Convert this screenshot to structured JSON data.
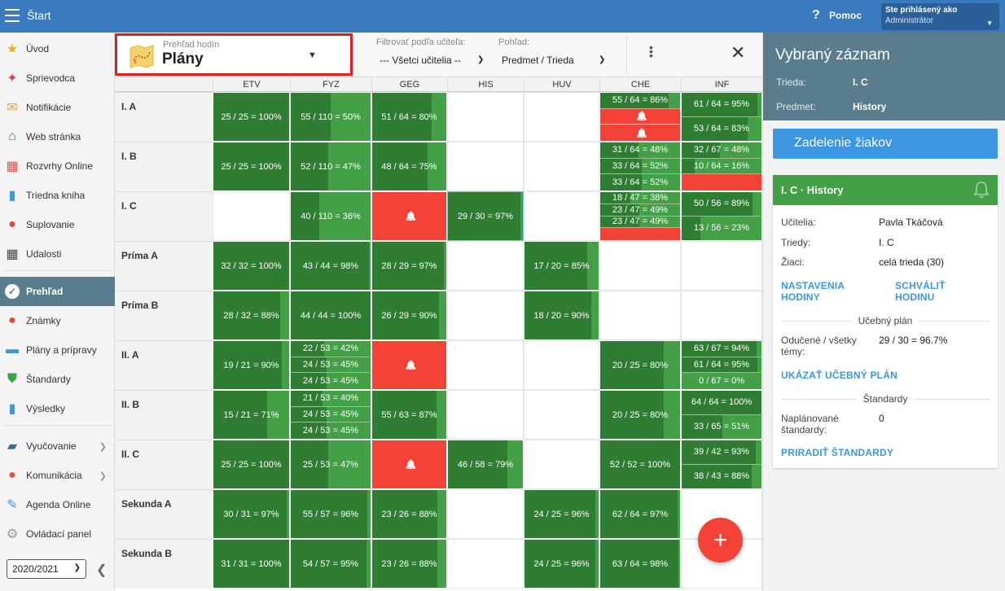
{
  "app": {
    "title": "Štart",
    "help": "Pomoc",
    "user_label": "Ste prihlásený ako",
    "user_name": "Administrátor"
  },
  "colors": {
    "topbar": "#3a7bbf",
    "green": "#2e7d32",
    "red": "#f44336",
    "panel": "#5a7d8e",
    "link": "#3c96e0"
  },
  "sidebar": {
    "items": [
      {
        "label": "Úvod",
        "icon": "star-icon"
      },
      {
        "label": "Sprievodca",
        "icon": "magic-wand-icon"
      },
      {
        "label": "Notifikácie",
        "icon": "envelope-icon"
      },
      {
        "label": "Web stránka",
        "icon": "house-icon"
      },
      {
        "label": "Rozvrhy Online",
        "icon": "timetable-icon"
      },
      {
        "label": "Triedna kniha",
        "icon": "book-icon"
      },
      {
        "label": "Suplovanie",
        "icon": "person-icon"
      },
      {
        "label": "Udalosti",
        "icon": "calendar-icon"
      },
      {
        "label": "Prehľad",
        "icon": "check-circle-icon"
      },
      {
        "label": "Známky",
        "icon": "grade-icon"
      },
      {
        "label": "Plány a prípravy",
        "icon": "briefcase-icon"
      },
      {
        "label": "Štandardy",
        "icon": "shield-check-icon"
      },
      {
        "label": "Výsledky",
        "icon": "bar-chart-icon"
      },
      {
        "label": "Vyučovanie",
        "icon": "open-book-icon"
      },
      {
        "label": "Komunikácia",
        "icon": "chat-icon"
      },
      {
        "label": "Agenda Online",
        "icon": "pen-icon"
      },
      {
        "label": "Ovládací panel",
        "icon": "gear-icon"
      }
    ],
    "year": "2020/2021"
  },
  "toolbar": {
    "view_sub": "Prehľad hodín",
    "view_title": "Plány",
    "filter_label": "Filtrovať podľa učiteľa:",
    "filter_value": "--- Všetci učitelia --",
    "view_label": "Pohľad:",
    "view_value": "Predmet / Trieda"
  },
  "grid": {
    "columns": [
      "ETV",
      "FYZ",
      "GEG",
      "HIS",
      "HUV",
      "CHE",
      "INF"
    ],
    "rows": [
      {
        "name": "I. A",
        "cells": [
          [
            {
              "t": "25 / 25 = 100%",
              "p": 1
            }
          ],
          [
            {
              "t": "55 / 110 = 50%",
              "p": 0.5
            }
          ],
          [
            {
              "t": "51 / 64 = 80%",
              "p": 0.8
            }
          ],
          [],
          [],
          [
            {
              "t": "55 / 64 = 86%",
              "p": 0.86
            },
            {
              "t": "",
              "red": true,
              "bell": true
            },
            {
              "t": "",
              "red": true,
              "bell": true
            }
          ],
          [
            {
              "t": "61 / 64 = 95%",
              "p": 0.95
            },
            {
              "t": "53 / 64 = 83%",
              "p": 0.83
            }
          ]
        ]
      },
      {
        "name": "I. B",
        "cells": [
          [
            {
              "t": "25 / 25 = 100%",
              "p": 1
            }
          ],
          [
            {
              "t": "52 / 110 = 47%",
              "p": 0.47
            }
          ],
          [
            {
              "t": "48 / 64 = 75%",
              "p": 0.75
            }
          ],
          [],
          [],
          [
            {
              "t": "31 / 64 = 48%",
              "p": 0.48
            },
            {
              "t": "33 / 64 = 52%",
              "p": 0.52
            },
            {
              "t": "33 / 64 = 52%",
              "p": 0.52
            }
          ],
          [
            {
              "t": "32 / 67 = 48%",
              "p": 0.48
            },
            {
              "t": "10 / 64 = 16%",
              "p": 0.16
            },
            {
              "t": "",
              "red": true
            }
          ]
        ]
      },
      {
        "name": "I. C",
        "cells": [
          [],
          [
            {
              "t": "40 / 110 = 36%",
              "p": 0.36
            }
          ],
          [
            {
              "t": "",
              "red": true,
              "bell": true
            }
          ],
          [
            {
              "t": "29 / 30 = 97%",
              "p": 0.97,
              "sel": true
            }
          ],
          [],
          [
            {
              "t": "18 / 47 = 38%",
              "p": 0.38
            },
            {
              "t": "23 / 47 = 49%",
              "p": 0.49
            },
            {
              "t": "23 / 47 = 49%",
              "p": 0.49
            },
            {
              "t": "",
              "red": true
            }
          ],
          [
            {
              "t": "50 / 56 = 89%",
              "p": 0.89
            },
            {
              "t": "13 / 56 = 23%",
              "p": 0.23
            }
          ]
        ]
      },
      {
        "name": "Príma A",
        "cells": [
          [
            {
              "t": "32 / 32 = 100%",
              "p": 1
            }
          ],
          [
            {
              "t": "43 / 44 = 98%",
              "p": 0.98
            }
          ],
          [
            {
              "t": "28 / 29 = 97%",
              "p": 0.97
            }
          ],
          [],
          [
            {
              "t": "17 / 20 = 85%",
              "p": 0.85
            }
          ],
          [],
          []
        ]
      },
      {
        "name": "Príma B",
        "cells": [
          [
            {
              "t": "28 / 32 = 88%",
              "p": 0.88
            }
          ],
          [
            {
              "t": "44 / 44 = 100%",
              "p": 1
            }
          ],
          [
            {
              "t": "26 / 29 = 90%",
              "p": 0.9
            }
          ],
          [],
          [
            {
              "t": "18 / 20 = 90%",
              "p": 0.9
            }
          ],
          [],
          []
        ]
      },
      {
        "name": "II. A",
        "cells": [
          [
            {
              "t": "19 / 21 = 90%",
              "p": 0.9
            }
          ],
          [
            {
              "t": "22 / 53 = 42%",
              "p": 0.42
            },
            {
              "t": "24 / 53 = 45%",
              "p": 0.45
            },
            {
              "t": "24 / 53 = 45%",
              "p": 0.45
            }
          ],
          [
            {
              "t": "",
              "red": true,
              "bell": true
            }
          ],
          [],
          [],
          [
            {
              "t": "20 / 25 = 80%",
              "p": 0.8
            }
          ],
          [
            {
              "t": "63 / 67 = 94%",
              "p": 0.94
            },
            {
              "t": "61 / 64 = 95%",
              "p": 0.95
            },
            {
              "t": "0 / 67 = 0%",
              "p": 0
            }
          ]
        ]
      },
      {
        "name": "II. B",
        "cells": [
          [
            {
              "t": "15 / 21 = 71%",
              "p": 0.71
            }
          ],
          [
            {
              "t": "21 / 53 = 40%",
              "p": 0.4
            },
            {
              "t": "24 / 53 = 45%",
              "p": 0.45
            },
            {
              "t": "24 / 53 = 45%",
              "p": 0.45
            }
          ],
          [
            {
              "t": "55 / 63 = 87%",
              "p": 0.87
            }
          ],
          [],
          [],
          [
            {
              "t": "20 / 25 = 80%",
              "p": 0.8
            }
          ],
          [
            {
              "t": "64 / 64 = 100%",
              "p": 1
            },
            {
              "t": "33 / 65 = 51%",
              "p": 0.51
            }
          ]
        ]
      },
      {
        "name": "II. C",
        "cells": [
          [
            {
              "t": "25 / 25 = 100%",
              "p": 1
            }
          ],
          [
            {
              "t": "25 / 53 = 47%",
              "p": 0.47
            }
          ],
          [
            {
              "t": "",
              "red": true,
              "bell": true
            }
          ],
          [
            {
              "t": "46 / 58 = 79%",
              "p": 0.79
            }
          ],
          [],
          [
            {
              "t": "52 / 52 = 100%",
              "p": 1
            }
          ],
          [
            {
              "t": "39 / 42 = 93%",
              "p": 0.93
            },
            {
              "t": "38 / 43 = 88%",
              "p": 0.88
            }
          ]
        ]
      },
      {
        "name": "Sekunda A",
        "cells": [
          [
            {
              "t": "30 / 31 = 97%",
              "p": 0.97
            }
          ],
          [
            {
              "t": "55 / 57 = 96%",
              "p": 0.96
            }
          ],
          [
            {
              "t": "23 / 26 = 88%",
              "p": 0.88
            }
          ],
          [],
          [
            {
              "t": "24 / 25 = 96%",
              "p": 0.96
            }
          ],
          [
            {
              "t": "62 / 64 = 97%",
              "p": 0.97
            }
          ],
          []
        ]
      },
      {
        "name": "Sekunda B",
        "cells": [
          [
            {
              "t": "31 / 31 = 100%",
              "p": 1
            }
          ],
          [
            {
              "t": "54 / 57 = 95%",
              "p": 0.95
            }
          ],
          [
            {
              "t": "23 / 26 = 88%",
              "p": 0.88
            }
          ],
          [],
          [
            {
              "t": "24 / 25 = 96%",
              "p": 0.96
            }
          ],
          [
            {
              "t": "63 / 64 = 98%",
              "p": 0.98
            }
          ],
          []
        ]
      }
    ]
  },
  "right": {
    "title": "Vybraný záznam",
    "trieda_label": "Trieda:",
    "trieda_value": "I. C",
    "predmet_label": "Predmet:",
    "predmet_value": "History",
    "assign_button": "Zadelenie žiakov",
    "card": {
      "title": "I. C · History",
      "teachers_label": "Učitelia:",
      "teachers_value": "Pavla Tkáčová",
      "classes_label": "Triedy:",
      "classes_value": "I. C",
      "students_label": "Žiaci:",
      "students_value": "celá trieda (30)",
      "link_settings": "NASTAVENIA HODINY",
      "link_approve": "SCHVÁLIŤ HODINU",
      "plan_section": "Učebný plán",
      "taught_label": "Odučené / všetky témy:",
      "taught_value": "29 / 30 = 96.7%",
      "link_plan": "UKÁZAŤ UČEBNÝ PLÁN",
      "std_section": "Štandardy",
      "planned_label": "Naplánované štandardy:",
      "planned_value": "0",
      "link_std": "PRIRADIŤ ŠTANDARDY"
    }
  }
}
